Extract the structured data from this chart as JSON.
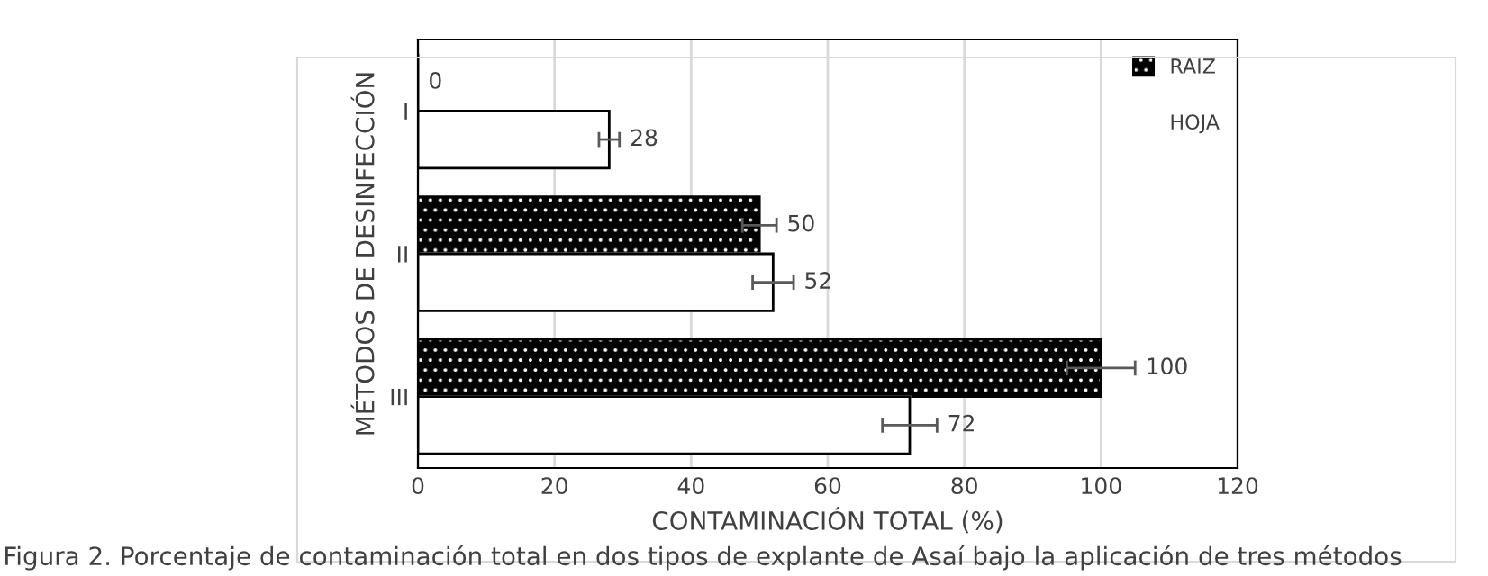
{
  "chart_data": {
    "type": "bar",
    "orientation": "horizontal",
    "categories": [
      "I",
      "II",
      "III"
    ],
    "series": [
      {
        "name": "RAIZ",
        "color": "#000000",
        "values": [
          0,
          50,
          100
        ],
        "errors": [
          null,
          2.5,
          5
        ]
      },
      {
        "name": "HOJA",
        "color": "#ffffff",
        "values": [
          28,
          52,
          72
        ],
        "errors": [
          1.5,
          3,
          4
        ]
      }
    ],
    "xlabel": "CONTAMINACIÓN TOTAL (%)",
    "ylabel": "MÉTODOS DE DESINFECCIÓN",
    "xlim": [
      0,
      120
    ],
    "xticks": [
      0,
      20,
      40,
      60,
      80,
      100,
      120
    ],
    "grid": "x",
    "legend": "top right",
    "data_labels": true,
    "annotations": [
      "Figura 2. Porcentaje de contaminación total en dos tipos de explante de Asaí bajo la aplicación de tres métodos"
    ]
  }
}
